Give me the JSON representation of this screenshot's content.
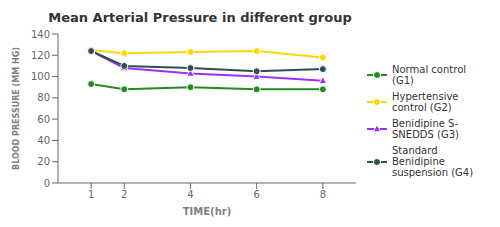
{
  "chart_data": {
    "type": "line",
    "title": "Mean Arterial Pressure in different group",
    "x_label": "TIME(hr)",
    "y_label": "BLOOD PRESSURE (MM HG)",
    "x": [
      1,
      2,
      4,
      6,
      8
    ],
    "xlim": [
      0,
      9
    ],
    "xticks": [
      1,
      2,
      4,
      6,
      8
    ],
    "ylim": [
      0,
      140
    ],
    "yticks": [
      0,
      20,
      40,
      60,
      80,
      100,
      120,
      140
    ],
    "grid": false,
    "legend": "right",
    "series": [
      {
        "name": "Normal control\n(G1)",
        "color": "#228B22",
        "marker": "circle",
        "values": [
          93,
          88,
          90,
          88,
          88
        ]
      },
      {
        "name": "Hypertensive\ncontrol (G2)",
        "color": "#FFD700",
        "marker": "circle",
        "values": [
          125,
          122,
          123,
          124,
          118
        ]
      },
      {
        "name": "Benidipine S-\nSNEDDS (G3)",
        "color": "#9B30FF",
        "marker": "triangle",
        "values": [
          124,
          108,
          103,
          100,
          96
        ]
      },
      {
        "name": "Standard\nBenidipine\nsuspension (G4)",
        "color": "#2F4F4F",
        "marker": "circle",
        "values": [
          124,
          110,
          108,
          105,
          107
        ]
      }
    ]
  }
}
